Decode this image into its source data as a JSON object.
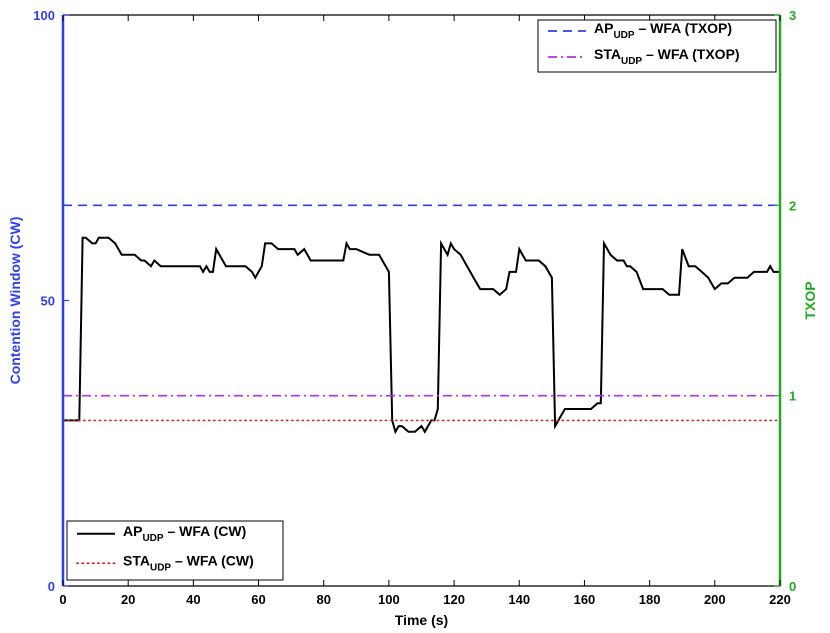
{
  "chart_data": {
    "type": "line",
    "xlabel": "Time (s)",
    "ylabel_left": "Contention Window (CW)",
    "ylabel_right": "TXOP",
    "xlim": [
      0,
      220
    ],
    "ylim_left": [
      0,
      100
    ],
    "ylim_right": [
      0,
      3
    ],
    "x_ticks": [
      0,
      20,
      40,
      60,
      80,
      100,
      120,
      140,
      160,
      180,
      200,
      220
    ],
    "y_left_ticks": [
      0,
      50,
      100
    ],
    "y_right_ticks": [
      0,
      1,
      2,
      3
    ],
    "grid": false,
    "colors": {
      "left_axis": "#2f3ff0",
      "right_axis": "#22a822",
      "ap_cw": "#000000",
      "sta_cw": "#cc2222",
      "ap_txop": "#2f3ff0",
      "sta_txop": "#b52cf0"
    },
    "legends": [
      {
        "placement": "top-right",
        "entries": [
          {
            "main": "AP",
            "sub": "UDP",
            "rest": " – WFA (TXOP)",
            "series": "ap_txop"
          },
          {
            "main": "STA",
            "sub": "UDP",
            "rest": " – WFA (TXOP)",
            "series": "sta_txop"
          }
        ]
      },
      {
        "placement": "bottom-left",
        "entries": [
          {
            "main": "AP",
            "sub": "UDP",
            "rest": " – WFA (CW)",
            "series": "ap_cw"
          },
          {
            "main": "STA",
            "sub": "UDP",
            "rest": " – WFA (CW)",
            "series": "sta_cw"
          }
        ]
      }
    ],
    "series": [
      {
        "id": "ap_cw",
        "axis": "left",
        "style": "solid",
        "x": [
          0,
          5,
          6,
          7,
          9,
          10,
          11,
          12,
          14,
          16,
          18,
          20,
          22,
          24,
          25,
          27,
          28,
          30,
          32,
          34,
          36,
          38,
          40,
          42,
          43,
          44,
          45,
          46,
          47,
          48,
          50,
          52,
          54,
          56,
          58,
          59,
          60,
          61,
          62,
          64,
          66,
          68,
          70,
          71,
          72,
          74,
          76,
          80,
          84,
          86,
          87,
          88,
          90,
          94,
          96,
          97,
          98,
          100,
          101,
          102,
          103,
          104,
          106,
          107,
          108,
          110,
          111,
          112,
          113,
          114,
          115,
          116,
          117,
          118,
          119,
          120,
          122,
          124,
          126,
          128,
          130,
          132,
          134,
          136,
          137,
          138,
          139,
          140,
          141,
          142,
          144,
          146,
          148,
          150,
          151,
          152,
          153,
          154,
          156,
          158,
          160,
          162,
          164,
          165,
          166,
          167,
          168,
          170,
          172,
          173,
          174,
          176,
          178,
          180,
          182,
          184,
          186,
          188,
          189,
          190,
          192,
          194,
          196,
          198,
          200,
          202,
          204,
          206,
          208,
          210,
          212,
          214,
          216,
          217,
          218,
          220
        ],
        "y": [
          29,
          29,
          61,
          61,
          60,
          60,
          61,
          61,
          61,
          60,
          58,
          58,
          58,
          57,
          57,
          56,
          57,
          56,
          56,
          56,
          56,
          56,
          56,
          56,
          55,
          56,
          55,
          55,
          59,
          58,
          56,
          56,
          56,
          56,
          55,
          54,
          55,
          56,
          60,
          60,
          59,
          59,
          59,
          59,
          58,
          59,
          57,
          57,
          57,
          57,
          60,
          59,
          59,
          58,
          58,
          58,
          57,
          55,
          29,
          27,
          28,
          28,
          27,
          27,
          27,
          28,
          27,
          28,
          29,
          29,
          31,
          60,
          59,
          58,
          60,
          59,
          58,
          56,
          54,
          52,
          52,
          52,
          51,
          52,
          55,
          55,
          55,
          59,
          58,
          57,
          57,
          57,
          56,
          54,
          28,
          29,
          30,
          31,
          31,
          31,
          31,
          31,
          32,
          32,
          60,
          59,
          58,
          57,
          57,
          56,
          56,
          55,
          52,
          52,
          52,
          52,
          51,
          51,
          51,
          59,
          56,
          56,
          55,
          54,
          52,
          53,
          53,
          54,
          54,
          54,
          55,
          55,
          55,
          56,
          55,
          55
        ]
      },
      {
        "id": "sta_cw",
        "axis": "left",
        "style": "dotted",
        "x": [
          0,
          220
        ],
        "y": [
          29,
          29
        ]
      },
      {
        "id": "ap_txop",
        "axis": "right",
        "style": "dashed",
        "x": [
          0,
          220
        ],
        "y": [
          2,
          2
        ]
      },
      {
        "id": "sta_txop",
        "axis": "right",
        "style": "dashdot",
        "x": [
          0,
          220
        ],
        "y": [
          1,
          1
        ]
      }
    ]
  }
}
